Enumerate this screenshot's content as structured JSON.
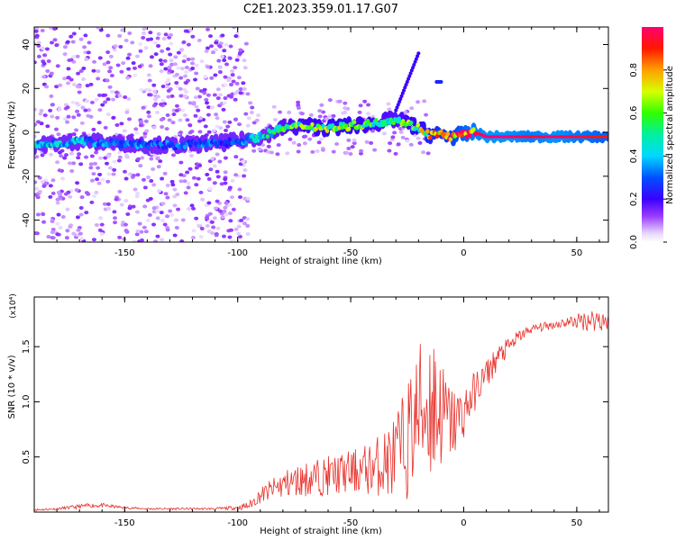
{
  "title": "C2E1.2023.359.01.17.G07",
  "chart_data": [
    {
      "type": "heatmap",
      "xlabel": "Height of straight line (km)",
      "ylabel": "Frequency (Hz)",
      "xlim": [
        -190,
        64
      ],
      "ylim": [
        -50,
        48
      ],
      "xticks": [
        -150,
        -100,
        -50,
        0,
        50
      ],
      "yticks": [
        -40,
        -20,
        0,
        20,
        40
      ],
      "colorbar": {
        "label": "Normalized spectral amplitude",
        "range": [
          0,
          1
        ],
        "ticks": [
          0.0,
          0.2,
          0.4,
          0.6,
          0.8
        ],
        "colormap": "rainbow (white-violet-blue-cyan-green-yellow-red-magenta)"
      },
      "ridge_line": {
        "x": [
          -190,
          -170,
          -150,
          -130,
          -110,
          -100,
          -90,
          -80,
          -70,
          -60,
          -50,
          -40,
          -30,
          -20,
          -15,
          -10,
          -5,
          0,
          5,
          10,
          20,
          30,
          40,
          50,
          60,
          64
        ],
        "y": [
          -6,
          -4,
          -5,
          -6,
          -5,
          -4,
          -2,
          2,
          3,
          2,
          3,
          4,
          6,
          2,
          -1,
          -1,
          -2,
          -1,
          0,
          -2,
          -2,
          -2,
          -2,
          -2,
          -2,
          -2
        ],
        "amplitude": [
          0.4,
          0.35,
          0.3,
          0.3,
          0.28,
          0.3,
          0.4,
          0.5,
          0.55,
          0.6,
          0.6,
          0.55,
          0.5,
          0.6,
          0.7,
          0.75,
          0.8,
          0.9,
          0.95,
          1.0,
          1.0,
          0.95,
          1.0,
          0.95,
          0.9,
          0.9
        ]
      },
      "features": [
        {
          "x": [
            -30,
            -20
          ],
          "y": [
            10,
            36
          ],
          "amplitude": 0.2
        },
        {
          "x": [
            -12,
            -10
          ],
          "y": [
            23,
            23
          ],
          "amplitude": 0.25
        }
      ],
      "noise_region_x": [
        -190,
        -95
      ]
    },
    {
      "type": "line",
      "xlabel": "Height of straight line (km)",
      "ylabel": "SNR (10 * v/v)",
      "y_multiplier": "(x10⁴)",
      "xlim": [
        -190,
        64
      ],
      "ylim": [
        0,
        1.95
      ],
      "xticks": [
        -150,
        -100,
        -50,
        0,
        50
      ],
      "yticks": [
        0.5,
        1.0,
        1.5
      ],
      "series": [
        {
          "color": "#e8312b",
          "x": [
            -190,
            -180,
            -170,
            -165,
            -160,
            -150,
            -140,
            -130,
            -120,
            -110,
            -100,
            -95,
            -90,
            -85,
            -80,
            -70,
            -60,
            -50,
            -40,
            -30,
            -25,
            -20,
            -15,
            -12,
            -10,
            -5,
            0,
            5,
            10,
            15,
            20,
            25,
            30,
            35,
            40,
            45,
            50,
            55,
            60,
            64
          ],
          "y": [
            0.02,
            0.03,
            0.05,
            0.06,
            0.06,
            0.04,
            0.03,
            0.03,
            0.03,
            0.03,
            0.04,
            0.06,
            0.15,
            0.2,
            0.25,
            0.3,
            0.33,
            0.36,
            0.4,
            0.5,
            0.65,
            0.9,
            1.0,
            0.95,
            0.9,
            0.8,
            0.9,
            1.1,
            1.25,
            1.4,
            1.5,
            1.6,
            1.66,
            1.68,
            1.7,
            1.72,
            1.73,
            1.74,
            1.75,
            1.73
          ],
          "noise": [
            0.01,
            0.01,
            0.02,
            0.02,
            0.02,
            0.01,
            0.01,
            0.01,
            0.01,
            0.01,
            0.02,
            0.04,
            0.07,
            0.1,
            0.13,
            0.16,
            0.18,
            0.2,
            0.25,
            0.4,
            0.55,
            0.65,
            0.75,
            0.8,
            0.5,
            0.35,
            0.25,
            0.18,
            0.14,
            0.12,
            0.08,
            0.06,
            0.04,
            0.04,
            0.04,
            0.05,
            0.07,
            0.1,
            0.12,
            0.1
          ]
        }
      ]
    }
  ]
}
